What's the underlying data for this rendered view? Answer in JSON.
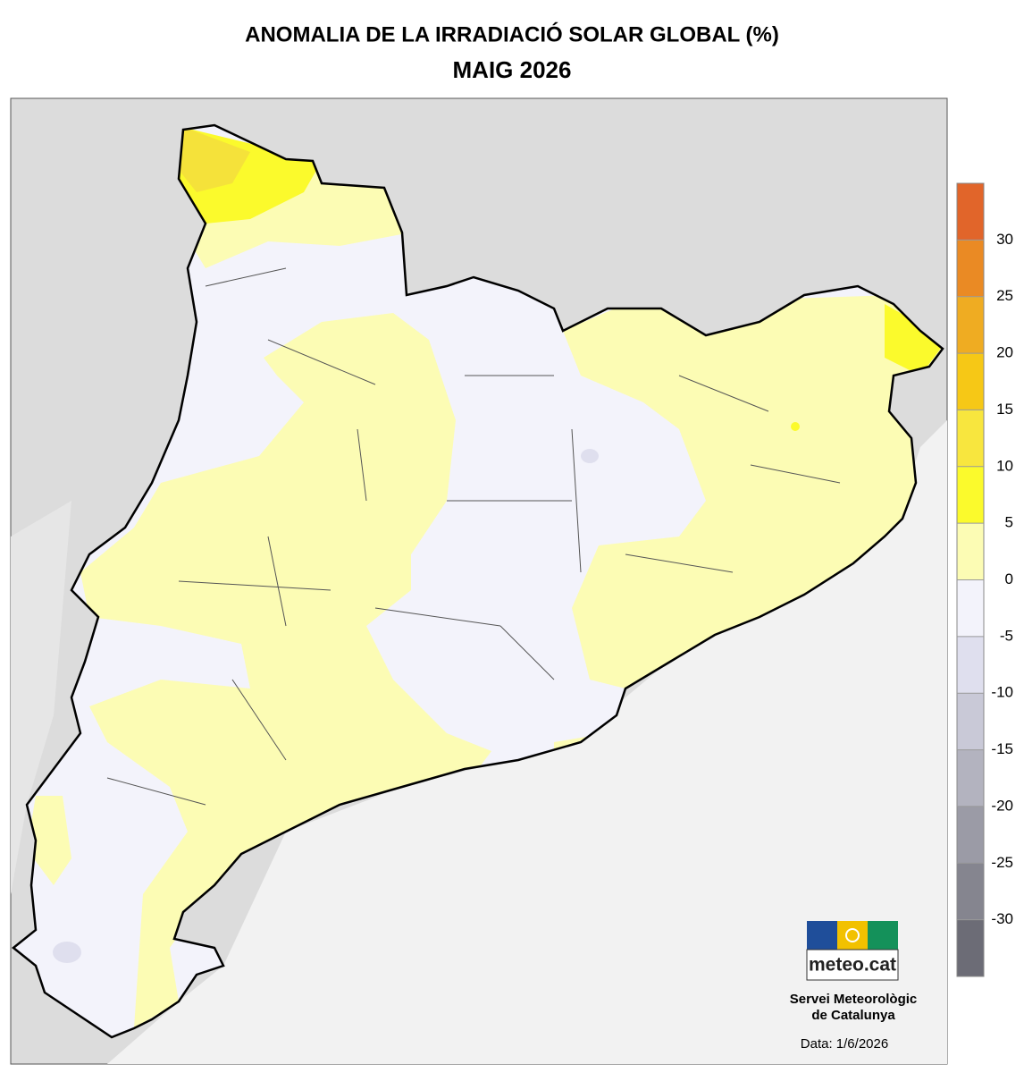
{
  "title": "ANOMALIA DE LA IRRADIACIÓ SOLAR GLOBAL (%)",
  "subtitle": "MAIG 2026",
  "legend": {
    "ticks": [
      30,
      25,
      20,
      15,
      10,
      5,
      0,
      -5,
      -10,
      -15,
      -20,
      -25,
      -30
    ],
    "colors": [
      "#e1652a",
      "#ea8a24",
      "#efac22",
      "#f6c816",
      "#f8e63e",
      "#fbfa2c",
      "#fcfcb4",
      "#f3f3fb",
      "#dfdfee",
      "#c9c9d7",
      "#b3b3bf",
      "#9b9ba6",
      "#85858f",
      "#6c6c76"
    ]
  },
  "logo": "meteo.cat",
  "agency": [
    "Servei Meteorològic",
    "de Catalunya"
  ],
  "date": "Data: 1/6/2026"
}
